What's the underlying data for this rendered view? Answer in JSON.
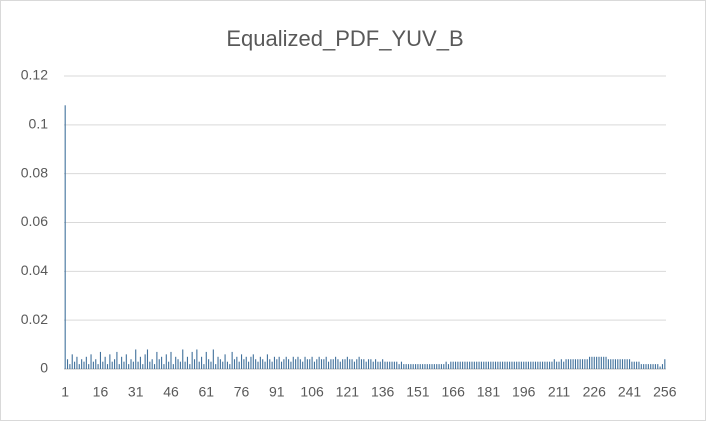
{
  "chart_data": {
    "type": "bar",
    "title": "Equalized_PDF_YUV_B",
    "categories": [
      1,
      null,
      null,
      null,
      null,
      null,
      null,
      null,
      null,
      null,
      null,
      null,
      null,
      null,
      null,
      16,
      null,
      null,
      null,
      null,
      null,
      null,
      null,
      null,
      null,
      null,
      null,
      null,
      null,
      null,
      31,
      null,
      null,
      null,
      null,
      null,
      null,
      null,
      null,
      null,
      null,
      null,
      null,
      null,
      null,
      46,
      null,
      null,
      null,
      null,
      null,
      null,
      null,
      null,
      null,
      null,
      null,
      null,
      null,
      null,
      61,
      null,
      null,
      null,
      null,
      null,
      null,
      null,
      null,
      null,
      null,
      null,
      null,
      null,
      null,
      76,
      null,
      null,
      null,
      null,
      null,
      null,
      null,
      null,
      null,
      null,
      null,
      null,
      null,
      null,
      91,
      null,
      null,
      null,
      null,
      null,
      null,
      null,
      null,
      null,
      null,
      null,
      null,
      null,
      null,
      106,
      null,
      null,
      null,
      null,
      null,
      null,
      null,
      null,
      null,
      null,
      null,
      null,
      null,
      null,
      121,
      null,
      null,
      null,
      null,
      null,
      null,
      null,
      null,
      null,
      null,
      null,
      null,
      null,
      null,
      136,
      null,
      null,
      null,
      null,
      null,
      null,
      null,
      null,
      null,
      null,
      null,
      null,
      null,
      null,
      151,
      null,
      null,
      null,
      null,
      null,
      null,
      null,
      null,
      null,
      null,
      null,
      null,
      null,
      null,
      166,
      null,
      null,
      null,
      null,
      null,
      null,
      null,
      null,
      null,
      null,
      null,
      null,
      null,
      null,
      181,
      null,
      null,
      null,
      null,
      null,
      null,
      null,
      null,
      null,
      null,
      null,
      null,
      null,
      null,
      196,
      null,
      null,
      null,
      null,
      null,
      null,
      null,
      null,
      null,
      null,
      null,
      null,
      null,
      null,
      211,
      null,
      null,
      null,
      null,
      null,
      null,
      null,
      null,
      null,
      null,
      null,
      null,
      null,
      null,
      226,
      null,
      null,
      null,
      null,
      null,
      null,
      null,
      null,
      null,
      null,
      null,
      null,
      null,
      null,
      241,
      null,
      null,
      null,
      null,
      null,
      null,
      null,
      null,
      null,
      null,
      null,
      null,
      null,
      null,
      256
    ],
    "values": [
      0.108,
      0.004,
      0.002,
      0.006,
      0.003,
      0.005,
      0.002,
      0.004,
      0.003,
      0.005,
      0.002,
      0.006,
      0.003,
      0.004,
      0.002,
      0.007,
      0.003,
      0.005,
      0.002,
      0.006,
      0.003,
      0.004,
      0.007,
      0.002,
      0.005,
      0.003,
      0.006,
      0.002,
      0.004,
      0.003,
      0.008,
      0.003,
      0.005,
      0.002,
      0.006,
      0.008,
      0.003,
      0.004,
      0.002,
      0.007,
      0.004,
      0.005,
      0.002,
      0.006,
      0.003,
      0.007,
      0.002,
      0.005,
      0.004,
      0.003,
      0.008,
      0.003,
      0.005,
      0.002,
      0.007,
      0.004,
      0.008,
      0.003,
      0.005,
      0.002,
      0.007,
      0.004,
      0.003,
      0.008,
      0.002,
      0.005,
      0.004,
      0.003,
      0.006,
      0.003,
      0.002,
      0.007,
      0.004,
      0.005,
      0.003,
      0.006,
      0.004,
      0.005,
      0.003,
      0.005,
      0.006,
      0.004,
      0.003,
      0.005,
      0.004,
      0.003,
      0.006,
      0.004,
      0.003,
      0.005,
      0.004,
      0.005,
      0.003,
      0.004,
      0.005,
      0.004,
      0.003,
      0.005,
      0.004,
      0.005,
      0.004,
      0.003,
      0.005,
      0.004,
      0.004,
      0.005,
      0.003,
      0.004,
      0.005,
      0.004,
      0.004,
      0.005,
      0.003,
      0.004,
      0.004,
      0.005,
      0.004,
      0.003,
      0.004,
      0.004,
      0.005,
      0.004,
      0.004,
      0.003,
      0.004,
      0.005,
      0.004,
      0.004,
      0.003,
      0.004,
      0.004,
      0.003,
      0.004,
      0.003,
      0.003,
      0.004,
      0.003,
      0.003,
      0.003,
      0.003,
      0.003,
      0.003,
      0.002,
      0.003,
      0.002,
      0.002,
      0.002,
      0.002,
      0.002,
      0.002,
      0.002,
      0.002,
      0.002,
      0.002,
      0.002,
      0.002,
      0.002,
      0.002,
      0.002,
      0.002,
      0.002,
      0.002,
      0.003,
      0.002,
      0.003,
      0.003,
      0.003,
      0.003,
      0.003,
      0.003,
      0.003,
      0.003,
      0.003,
      0.003,
      0.003,
      0.003,
      0.003,
      0.003,
      0.003,
      0.003,
      0.003,
      0.003,
      0.003,
      0.003,
      0.003,
      0.003,
      0.003,
      0.003,
      0.003,
      0.003,
      0.003,
      0.003,
      0.003,
      0.003,
      0.003,
      0.003,
      0.003,
      0.003,
      0.003,
      0.003,
      0.003,
      0.003,
      0.003,
      0.003,
      0.003,
      0.003,
      0.003,
      0.003,
      0.004,
      0.003,
      0.003,
      0.004,
      0.003,
      0.004,
      0.004,
      0.004,
      0.004,
      0.004,
      0.004,
      0.004,
      0.004,
      0.004,
      0.004,
      0.005,
      0.005,
      0.005,
      0.005,
      0.005,
      0.005,
      0.005,
      0.005,
      0.004,
      0.004,
      0.004,
      0.004,
      0.004,
      0.004,
      0.004,
      0.004,
      0.004,
      0.004,
      0.003,
      0.003,
      0.003,
      0.003,
      0.002,
      0.002,
      0.002,
      0.002,
      0.002,
      0.002,
      0.002,
      0.002,
      0.001,
      0.002,
      0.004
    ],
    "color": "#41719c",
    "ylim": [
      0,
      0.12
    ],
    "yticks": [
      0,
      0.02,
      0.04,
      0.06,
      0.08,
      0.1,
      0.12
    ],
    "grid": true
  }
}
